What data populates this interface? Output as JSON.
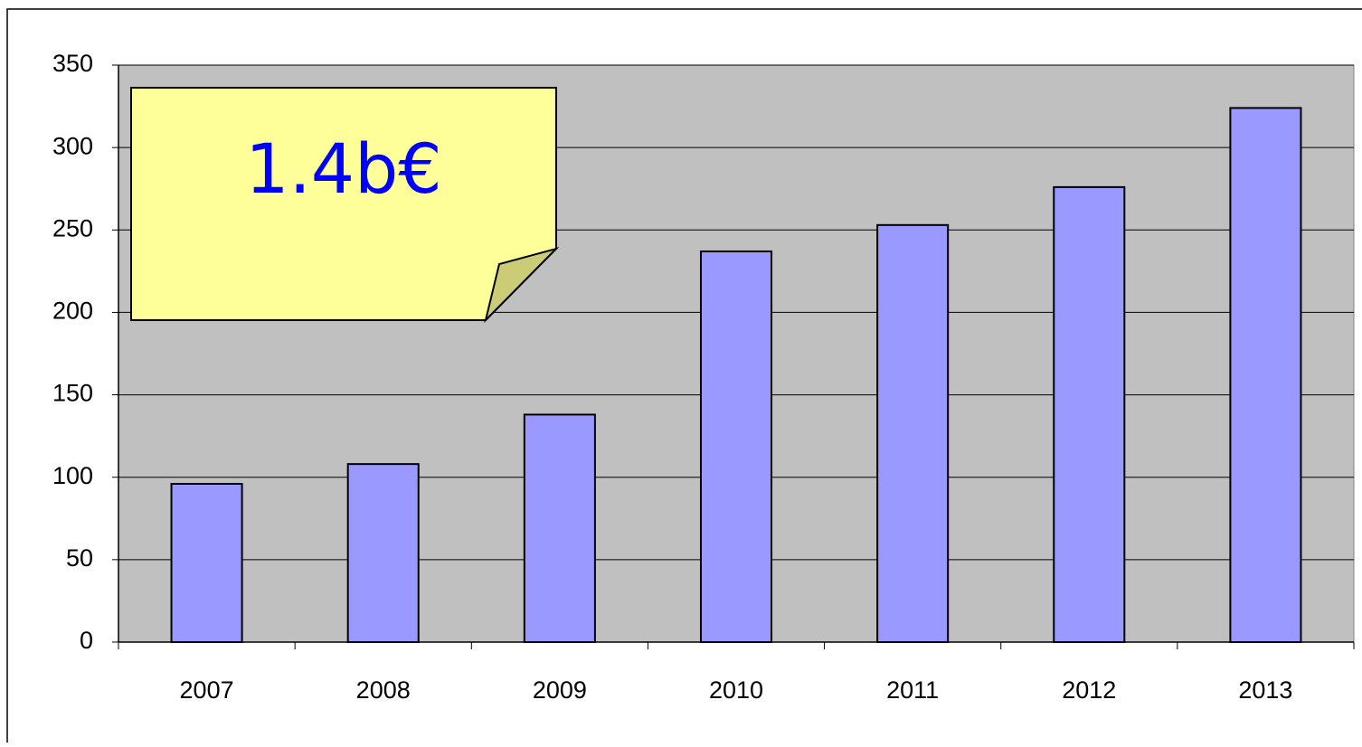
{
  "chart_data": {
    "type": "bar",
    "annotation": "1.4b€",
    "categories": [
      "2007",
      "2008",
      "2009",
      "2010",
      "2011",
      "2012",
      "2013"
    ],
    "values": [
      96,
      108,
      138,
      237,
      253,
      276,
      324
    ],
    "color": "#9999ff",
    "plot_background": "#c0c0c0",
    "ylim": [
      0,
      350
    ],
    "yticks": [
      0,
      50,
      100,
      150,
      200,
      250,
      300,
      350
    ],
    "grid": true
  }
}
